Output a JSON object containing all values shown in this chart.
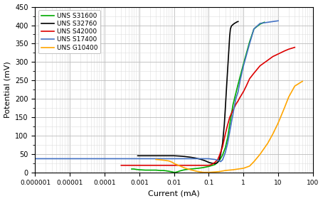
{
  "title": "",
  "xlabel": "Current (mA)",
  "ylabel": "Potential (mV)",
  "ylim": [
    0,
    450
  ],
  "xlim_log": [
    -6,
    2
  ],
  "yticks": [
    0,
    50,
    100,
    150,
    200,
    250,
    300,
    350,
    400,
    450
  ],
  "xtick_locs": [
    1e-06,
    1e-05,
    0.0001,
    0.001,
    0.01,
    0.1,
    1.0,
    10.0,
    100.0
  ],
  "xtick_labels": [
    "0.000001",
    "0.00001",
    "0.0001",
    "0.001",
    "0.01",
    "0.1",
    "1",
    "10",
    "100"
  ],
  "background_color": "#ffffff",
  "grid_major_color": "#bbbbbb",
  "grid_minor_color": "#dddddd",
  "series": [
    {
      "label": "UNS S31600",
      "color": "#00aa00",
      "x": [
        0.0006,
        0.0007,
        0.0008,
        0.001,
        0.0015,
        0.002,
        0.003,
        0.004,
        0.005,
        0.006,
        0.007,
        0.008,
        0.009,
        0.01,
        0.011,
        0.012,
        0.013,
        0.015,
        0.02,
        0.03,
        0.05,
        0.07,
        0.1,
        0.15,
        0.2,
        0.25,
        0.3,
        0.35,
        0.4,
        0.5,
        0.7,
        1.0,
        1.5,
        2.0,
        3.0,
        4.0
      ],
      "y": [
        10,
        10,
        9,
        8,
        7,
        7,
        7,
        6,
        6,
        5,
        4,
        3,
        2,
        1,
        1,
        2,
        3,
        5,
        8,
        10,
        12,
        14,
        17,
        22,
        32,
        48,
        68,
        95,
        130,
        185,
        240,
        295,
        355,
        390,
        403,
        408
      ]
    },
    {
      "label": "UNS S32760",
      "color": "#000000",
      "x": [
        0.0009,
        0.001,
        0.0015,
        0.002,
        0.003,
        0.005,
        0.007,
        0.01,
        0.015,
        0.02,
        0.03,
        0.04,
        0.05,
        0.06,
        0.07,
        0.08,
        0.09,
        0.1,
        0.12,
        0.14,
        0.16,
        0.18,
        0.2,
        0.22,
        0.25,
        0.28,
        0.3,
        0.32,
        0.35,
        0.38,
        0.4,
        0.42,
        0.45,
        0.5,
        0.55,
        0.6,
        0.65,
        0.7
      ],
      "y": [
        46,
        46,
        46,
        46,
        46,
        46,
        46,
        46,
        45,
        44,
        42,
        40,
        38,
        36,
        34,
        32,
        30,
        28,
        26,
        25,
        25,
        28,
        35,
        50,
        80,
        130,
        175,
        220,
        280,
        335,
        370,
        390,
        398,
        402,
        405,
        407,
        409,
        410
      ]
    },
    {
      "label": "UNS S42000",
      "color": "#dd0000",
      "x": [
        0.0003,
        0.0004,
        0.0005,
        0.0007,
        0.001,
        0.002,
        0.003,
        0.005,
        0.007,
        0.01,
        0.015,
        0.02,
        0.03,
        0.05,
        0.07,
        0.1,
        0.12,
        0.15,
        0.18,
        0.2,
        0.25,
        0.3,
        0.35,
        0.4,
        0.5,
        0.6,
        0.7,
        0.8,
        1.0,
        1.2,
        1.5,
        2.0,
        3.0,
        5.0,
        7.0,
        10.0,
        15.0,
        20.0,
        30.0
      ],
      "y": [
        20,
        20,
        20,
        20,
        20,
        20,
        20,
        20,
        20,
        20,
        20,
        20,
        20,
        20,
        20,
        20,
        22,
        28,
        35,
        45,
        70,
        105,
        130,
        150,
        170,
        185,
        195,
        205,
        220,
        235,
        255,
        270,
        290,
        305,
        315,
        322,
        330,
        335,
        340
      ]
    },
    {
      "label": "UNS S17400",
      "color": "#4472c4",
      "x": [
        1e-06,
        3e-06,
        1e-05,
        3e-05,
        0.0001,
        0.0003,
        0.001,
        0.003,
        0.005,
        0.007,
        0.01,
        0.02,
        0.03,
        0.05,
        0.07,
        0.1,
        0.12,
        0.15,
        0.18,
        0.2,
        0.22,
        0.25,
        0.3,
        0.35,
        0.4,
        0.5,
        0.6,
        0.7,
        0.8,
        1.0,
        1.5,
        2.0,
        3.0,
        5.0,
        7.0,
        10.0
      ],
      "y": [
        38,
        38,
        38,
        38,
        38,
        38,
        38,
        38,
        38,
        38,
        38,
        38,
        38,
        38,
        38,
        38,
        37,
        36,
        34,
        32,
        30,
        35,
        55,
        80,
        110,
        160,
        200,
        220,
        250,
        290,
        350,
        390,
        405,
        408,
        410,
        412
      ]
    },
    {
      "label": "UNS G10400",
      "color": "#ffa500",
      "x": [
        0.003,
        0.004,
        0.005,
        0.006,
        0.007,
        0.008,
        0.009,
        0.01,
        0.015,
        0.02,
        0.03,
        0.04,
        0.05,
        0.07,
        0.1,
        0.15,
        0.2,
        0.3,
        0.5,
        0.7,
        1.0,
        1.5,
        2.0,
        3.0,
        5.0,
        7.0,
        10.0,
        15.0,
        20.0,
        30.0,
        50.0
      ],
      "y": [
        36,
        35,
        34,
        33,
        32,
        30,
        28,
        25,
        18,
        13,
        8,
        5,
        3,
        1,
        1,
        2,
        3,
        6,
        8,
        10,
        12,
        18,
        30,
        50,
        80,
        105,
        135,
        175,
        205,
        235,
        248
      ]
    }
  ]
}
